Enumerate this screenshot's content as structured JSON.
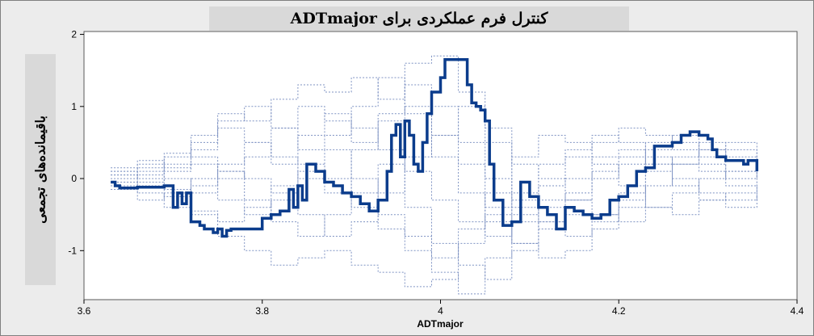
{
  "chart_data": {
    "type": "line",
    "title": "کنترل فرم عملکردی برای ADTmajor",
    "xlabel": "ADTmajor",
    "ylabel": "باقیمانده‌های تجمعی",
    "xlim": [
      3.6,
      4.4
    ],
    "ylim": [
      -1.68,
      2.04
    ],
    "x_ticks": [
      3.6,
      3.8,
      4.0,
      4.2,
      4.4
    ],
    "y_ticks": [
      -1,
      0,
      1,
      2
    ],
    "x_tick_labels": [
      "3.6",
      "3.8",
      "4",
      "4.2",
      "4.4"
    ],
    "y_tick_labels": [
      "-1",
      "0",
      "1",
      "2"
    ],
    "grid": false,
    "legend": "none",
    "observed_color": "#0b3c8c",
    "simulated_color": "#7f93c3",
    "series": [
      {
        "style": "observed",
        "x": [
          3.63,
          3.635,
          3.64,
          3.66,
          3.69,
          3.7,
          3.705,
          3.71,
          3.715,
          3.72,
          3.73,
          3.735,
          3.745,
          3.75,
          3.755,
          3.76,
          3.765,
          3.77,
          3.8,
          3.81,
          3.82,
          3.83,
          3.835,
          3.84,
          3.845,
          3.85,
          3.86,
          3.87,
          3.88,
          3.89,
          3.9,
          3.91,
          3.92,
          3.93,
          3.94,
          3.945,
          3.95,
          3.955,
          3.96,
          3.965,
          3.97,
          3.975,
          3.98,
          3.985,
          3.99,
          4.0,
          4.005,
          4.03,
          4.035,
          4.04,
          4.045,
          4.05,
          4.055,
          4.06,
          4.07,
          4.08,
          4.09,
          4.1,
          4.11,
          4.12,
          4.13,
          4.14,
          4.15,
          4.16,
          4.17,
          4.18,
          4.19,
          4.2,
          4.21,
          4.22,
          4.23,
          4.24,
          4.25,
          4.26,
          4.27,
          4.28,
          4.29,
          4.3,
          4.305,
          4.31,
          4.32,
          4.33,
          4.34,
          4.345,
          4.355
        ],
        "y": [
          -0.05,
          -0.1,
          -0.13,
          -0.12,
          -0.1,
          -0.4,
          -0.2,
          -0.35,
          -0.2,
          -0.6,
          -0.65,
          -0.7,
          -0.75,
          -0.7,
          -0.8,
          -0.72,
          -0.7,
          -0.7,
          -0.55,
          -0.5,
          -0.45,
          -0.15,
          -0.4,
          -0.1,
          -0.3,
          0.2,
          0.1,
          -0.05,
          -0.1,
          -0.2,
          -0.25,
          -0.35,
          -0.45,
          -0.3,
          0.1,
          0.6,
          0.75,
          0.3,
          0.8,
          0.6,
          0.2,
          0.1,
          0.5,
          0.9,
          1.2,
          1.4,
          1.65,
          1.3,
          1.05,
          1.0,
          0.95,
          0.8,
          0.2,
          -0.3,
          -0.65,
          -0.6,
          -0.05,
          -0.25,
          -0.4,
          -0.5,
          -0.7,
          -0.4,
          -0.45,
          -0.5,
          -0.55,
          -0.5,
          -0.3,
          -0.25,
          -0.1,
          0.1,
          0.15,
          0.45,
          0.45,
          0.5,
          0.6,
          0.65,
          0.6,
          0.55,
          0.4,
          0.3,
          0.25,
          0.25,
          0.2,
          0.25,
          0.1
        ]
      },
      {
        "style": "simulated",
        "x": [
          3.63,
          3.66,
          3.69,
          3.72,
          3.75,
          3.78,
          3.81,
          3.84,
          3.87,
          3.9,
          3.93,
          3.96,
          3.99,
          4.02,
          4.05,
          4.08,
          4.11,
          4.14,
          4.17,
          4.2,
          4.23,
          4.26,
          4.29,
          4.32,
          4.355
        ],
        "y": [
          0.1,
          0.2,
          0.3,
          0.6,
          0.9,
          0.8,
          1.1,
          1.3,
          1.2,
          1.4,
          1.1,
          1.6,
          1.7,
          1.2,
          0.5,
          -0.3,
          -0.4,
          -0.5,
          -0.6,
          -0.4,
          0.4,
          0.5,
          0.3,
          0.5,
          0.3
        ]
      },
      {
        "style": "simulated",
        "x": [
          3.63,
          3.66,
          3.69,
          3.72,
          3.75,
          3.78,
          3.81,
          3.84,
          3.87,
          3.9,
          3.93,
          3.96,
          3.99,
          4.02,
          4.05,
          4.08,
          4.11,
          4.14,
          4.17,
          4.2,
          4.23,
          4.26,
          4.29,
          4.32,
          4.355
        ],
        "y": [
          -0.05,
          -0.2,
          -0.4,
          -0.5,
          -0.8,
          -1.0,
          -1.2,
          -1.1,
          -1.0,
          -1.2,
          -1.3,
          -1.5,
          -1.4,
          -0.9,
          -0.5,
          -0.2,
          0.2,
          0.4,
          0.6,
          0.5,
          0.3,
          0.2,
          0.1,
          -0.1,
          -0.3
        ]
      },
      {
        "style": "simulated",
        "x": [
          3.63,
          3.66,
          3.69,
          3.72,
          3.75,
          3.78,
          3.81,
          3.84,
          3.87,
          3.9,
          3.93,
          3.96,
          3.99,
          4.02,
          4.05,
          4.08,
          4.11,
          4.14,
          4.17,
          4.2,
          4.23,
          4.26,
          4.29,
          4.32,
          4.355
        ],
        "y": [
          0.05,
          0.1,
          0.0,
          -0.2,
          0.2,
          0.5,
          0.3,
          0.0,
          -0.2,
          0.4,
          0.8,
          1.0,
          0.6,
          0.2,
          -0.4,
          -0.9,
          -1.1,
          -1.0,
          -0.7,
          -0.3,
          -0.1,
          0.2,
          0.4,
          0.1,
          -0.1
        ]
      },
      {
        "style": "simulated",
        "x": [
          3.63,
          3.66,
          3.69,
          3.72,
          3.75,
          3.78,
          3.81,
          3.84,
          3.87,
          3.9,
          3.93,
          3.96,
          3.99,
          4.02,
          4.05,
          4.08,
          4.11,
          4.14,
          4.17,
          4.2,
          4.23,
          4.26,
          4.29,
          4.32,
          4.355
        ],
        "y": [
          -0.1,
          -0.05,
          0.15,
          0.3,
          0.1,
          -0.3,
          -0.6,
          -0.8,
          -0.5,
          -0.2,
          0.2,
          -0.4,
          -0.9,
          -1.2,
          -1.4,
          -1.0,
          -0.6,
          -0.2,
          0.1,
          0.3,
          0.2,
          0.0,
          -0.2,
          -0.3,
          -0.2
        ]
      },
      {
        "style": "simulated",
        "x": [
          3.63,
          3.66,
          3.69,
          3.72,
          3.75,
          3.78,
          3.81,
          3.84,
          3.87,
          3.9,
          3.93,
          3.96,
          3.99,
          4.02,
          4.05,
          4.08,
          4.11,
          4.14,
          4.17,
          4.2,
          4.23,
          4.26,
          4.29,
          4.32,
          4.355
        ],
        "y": [
          0.15,
          0.25,
          0.1,
          0.4,
          0.7,
          0.5,
          0.2,
          0.6,
          0.9,
          0.7,
          0.4,
          0.1,
          -0.3,
          -0.6,
          -0.8,
          -0.5,
          -0.1,
          0.3,
          0.5,
          0.7,
          0.6,
          0.4,
          0.2,
          0.0,
          0.1
        ]
      },
      {
        "style": "simulated",
        "x": [
          3.63,
          3.66,
          3.69,
          3.72,
          3.75,
          3.78,
          3.81,
          3.84,
          3.87,
          3.9,
          3.93,
          3.96,
          3.99,
          4.02,
          4.05,
          4.08,
          4.11,
          4.14,
          4.17,
          4.2,
          4.23,
          4.26,
          4.29,
          4.32,
          4.355
        ],
        "y": [
          -0.15,
          -0.3,
          -0.2,
          0.0,
          -0.3,
          -0.5,
          -0.3,
          0.1,
          0.4,
          0.0,
          -0.5,
          -0.8,
          -1.1,
          -0.7,
          -0.2,
          0.3,
          0.6,
          0.5,
          0.2,
          -0.1,
          -0.4,
          -0.5,
          -0.3,
          -0.2,
          -0.05
        ]
      },
      {
        "style": "simulated",
        "x": [
          3.63,
          3.66,
          3.69,
          3.72,
          3.75,
          3.78,
          3.81,
          3.84,
          3.87,
          3.9,
          3.93,
          3.96,
          3.99,
          4.02,
          4.05,
          4.08,
          4.11,
          4.14,
          4.17,
          4.2,
          4.23,
          4.26,
          4.29,
          4.32,
          4.355
        ],
        "y": [
          0.0,
          0.15,
          0.35,
          0.2,
          0.0,
          0.3,
          0.7,
          1.0,
          0.8,
          0.5,
          0.9,
          1.3,
          1.0,
          0.5,
          0.0,
          -0.4,
          -0.7,
          -0.8,
          -0.5,
          -0.2,
          0.1,
          0.3,
          0.5,
          0.4,
          0.2
        ]
      },
      {
        "style": "simulated",
        "x": [
          3.63,
          3.66,
          3.69,
          3.72,
          3.75,
          3.78,
          3.81,
          3.84,
          3.87,
          3.9,
          3.93,
          3.96,
          3.99,
          4.02,
          4.05,
          4.08,
          4.11,
          4.14,
          4.17,
          4.2,
          4.23,
          4.26,
          4.29,
          4.32,
          4.355
        ],
        "y": [
          0.05,
          -0.1,
          -0.25,
          -0.45,
          -0.6,
          -0.4,
          -0.1,
          0.2,
          0.0,
          -0.4,
          -0.7,
          -1.0,
          -1.3,
          -1.6,
          -1.1,
          -0.6,
          -0.3,
          0.0,
          0.3,
          0.4,
          0.2,
          -0.1,
          -0.3,
          -0.4,
          -0.25
        ]
      },
      {
        "style": "simulated",
        "x": [
          3.63,
          3.66,
          3.69,
          3.72,
          3.75,
          3.78,
          3.81,
          3.84,
          3.87,
          3.9,
          3.93,
          3.96,
          3.99,
          4.02,
          4.05,
          4.08,
          4.11,
          4.14,
          4.17,
          4.2,
          4.23,
          4.26,
          4.29,
          4.32,
          4.355
        ],
        "y": [
          -0.05,
          0.05,
          0.2,
          0.5,
          0.8,
          1.0,
          0.7,
          0.4,
          0.6,
          1.0,
          1.4,
          0.9,
          0.3,
          -0.2,
          -0.6,
          -0.9,
          -0.6,
          -0.3,
          0.0,
          0.2,
          0.5,
          0.6,
          0.4,
          0.3,
          0.15
        ]
      },
      {
        "style": "simulated",
        "x": [
          3.63,
          3.66,
          3.69,
          3.72,
          3.75,
          3.78,
          3.81,
          3.84,
          3.87,
          3.9,
          3.93,
          3.96,
          3.99,
          4.02,
          4.05,
          4.08,
          4.11,
          4.14,
          4.17,
          4.2,
          4.23,
          4.26,
          4.29,
          4.32,
          4.355
        ],
        "y": [
          0.1,
          0.0,
          -0.15,
          -0.1,
          0.1,
          0.0,
          -0.2,
          -0.5,
          -0.8,
          -0.6,
          -0.2,
          0.3,
          0.6,
          1.0,
          0.7,
          0.2,
          0.0,
          -0.3,
          -0.5,
          -0.6,
          -0.4,
          -0.2,
          0.0,
          0.1,
          0.0
        ]
      }
    ]
  }
}
